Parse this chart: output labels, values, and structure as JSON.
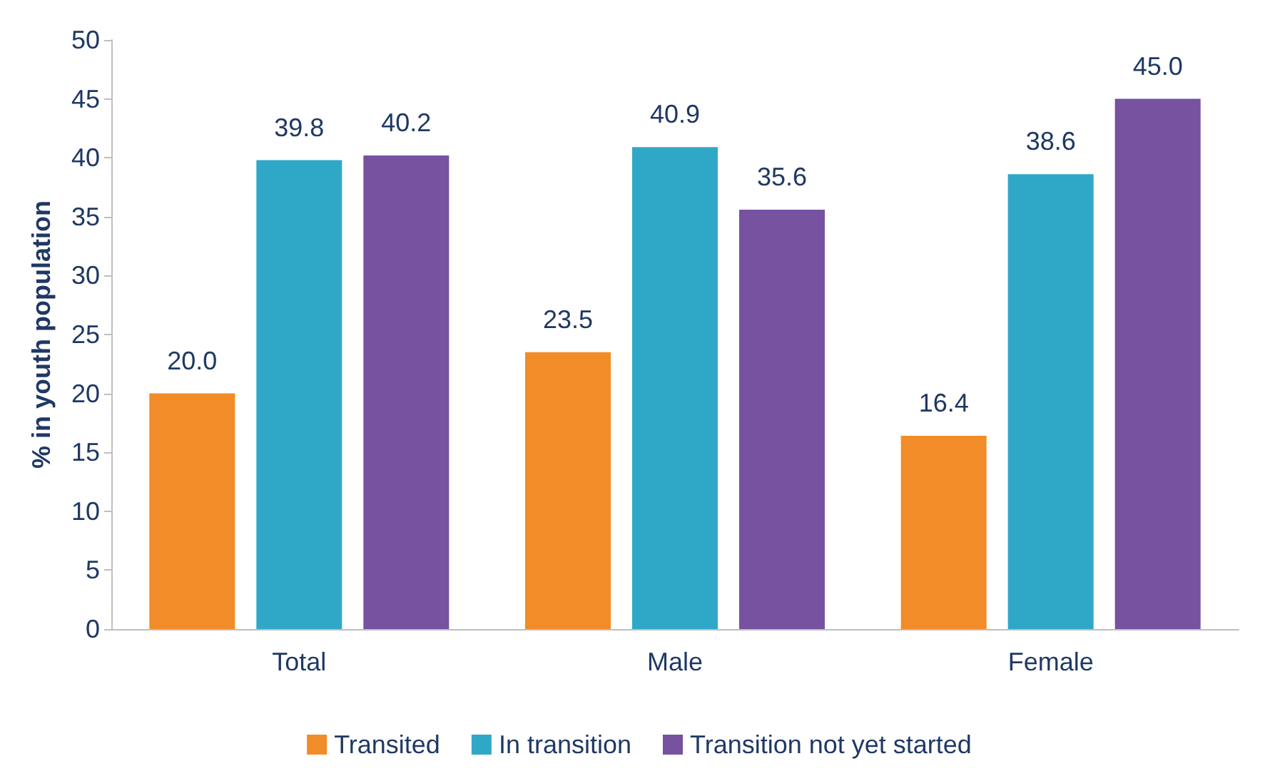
{
  "chart_data": {
    "type": "bar",
    "ylabel": "% in youth population",
    "categories": [
      "Total",
      "Male",
      "Female"
    ],
    "series": [
      {
        "name": "Transited",
        "color": "#f28c28",
        "values": [
          20.0,
          23.5,
          16.4
        ],
        "value_labels": [
          "20.0",
          "23.5",
          "16.4"
        ]
      },
      {
        "name": "In transition",
        "color": "#2fa8c8",
        "values": [
          39.8,
          40.9,
          38.6
        ],
        "value_labels": [
          "39.8",
          "40.9",
          "38.6"
        ]
      },
      {
        "name": "Transition not yet started",
        "color": "#7652a0",
        "values": [
          40.2,
          35.6,
          45.0
        ],
        "value_labels": [
          "40.2",
          "35.6",
          "45.0"
        ]
      }
    ],
    "ylim": [
      0,
      50
    ],
    "yticks": [
      0,
      5,
      10,
      15,
      20,
      25,
      30,
      35,
      40,
      45,
      50
    ],
    "grid": false,
    "legend": "bottom"
  }
}
